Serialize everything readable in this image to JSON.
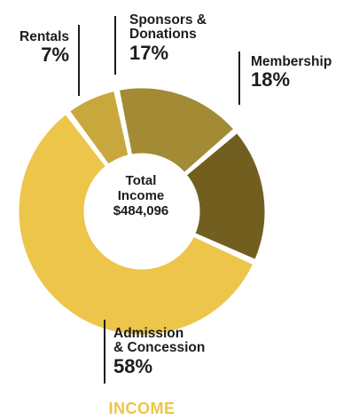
{
  "chart_data": {
    "type": "pie",
    "title": "INCOME",
    "center_text": {
      "line1": "Total",
      "line2": "Income",
      "total": "$484,096"
    },
    "slices": [
      {
        "label": "Rentals",
        "value": 7,
        "pct_label": "7%",
        "color": "#c8a83c"
      },
      {
        "label": "Sponsors &\nDonations",
        "value": 17,
        "pct_label": "17%",
        "color": "#a38a34"
      },
      {
        "label": "Membership",
        "value": 18,
        "pct_label": "18%",
        "color": "#725f20"
      },
      {
        "label": "Admission\n& Concession",
        "value": 58,
        "pct_label": "58%",
        "color": "#edc54a"
      }
    ],
    "title_color": "#edc54a"
  }
}
